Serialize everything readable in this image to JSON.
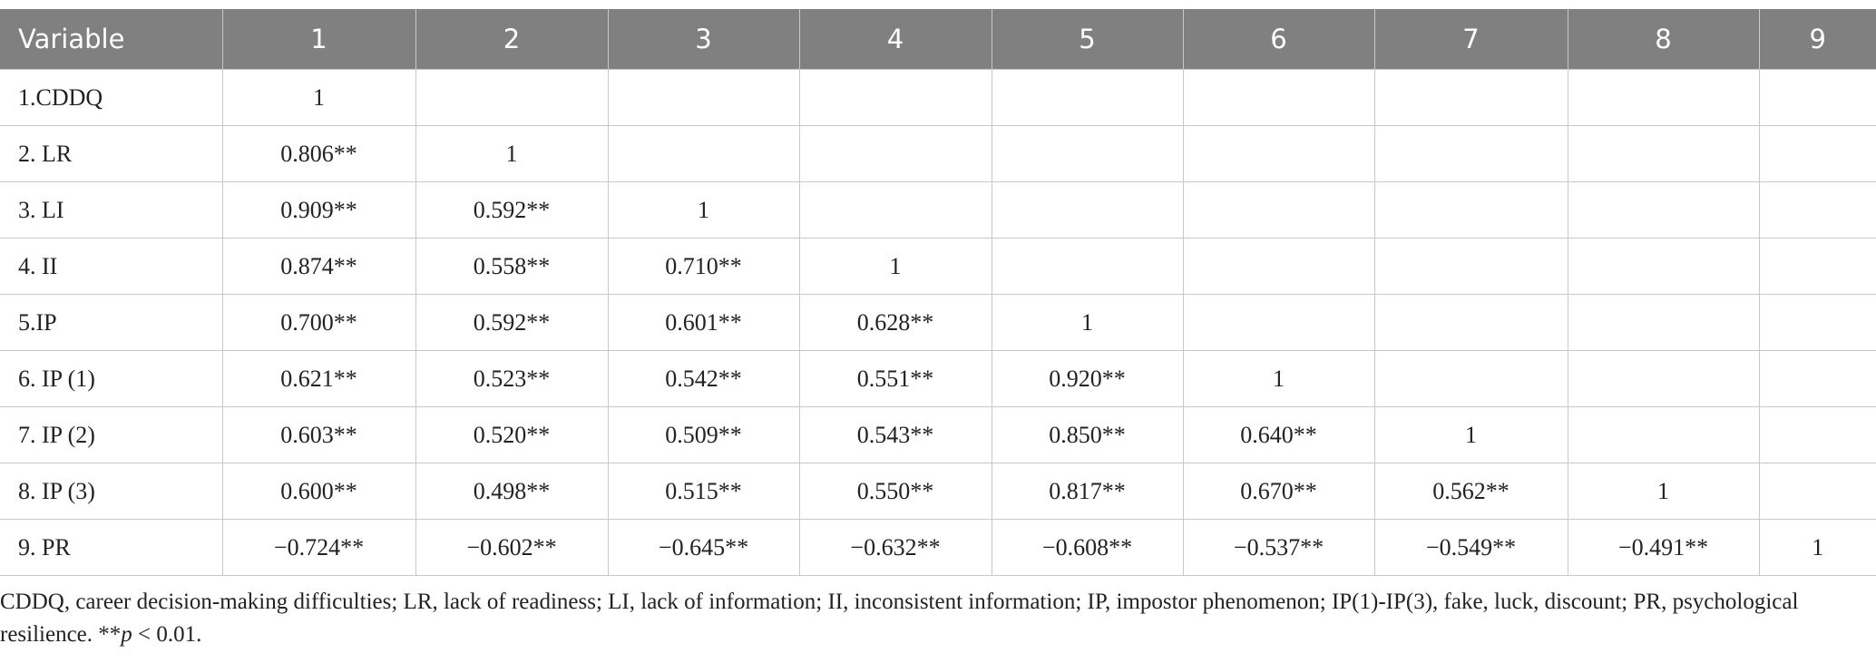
{
  "table": {
    "header": [
      "Variable",
      "1",
      "2",
      "3",
      "4",
      "5",
      "6",
      "7",
      "8",
      "9"
    ],
    "rows": [
      [
        "1.CDDQ",
        "1"
      ],
      [
        "2. LR",
        "0.806**",
        "1"
      ],
      [
        "3. LI",
        "0.909**",
        "0.592**",
        "1"
      ],
      [
        "4. II",
        "0.874**",
        "0.558**",
        "0.710**",
        "1"
      ],
      [
        "5.IP",
        "0.700**",
        "0.592**",
        "0.601**",
        "0.628**",
        "1"
      ],
      [
        "6. IP (1)",
        "0.621**",
        "0.523**",
        "0.542**",
        "0.551**",
        "0.920**",
        "1"
      ],
      [
        "7. IP (2)",
        "0.603**",
        "0.520**",
        "0.509**",
        "0.543**",
        "0.850**",
        "0.640**",
        "1"
      ],
      [
        "8. IP (3)",
        "0.600**",
        "0.498**",
        "0.515**",
        "0.550**",
        "0.817**",
        "0.670**",
        "0.562**",
        "1"
      ],
      [
        "9. PR",
        "−0.724**",
        "−0.602**",
        "−0.645**",
        "−0.632**",
        "−0.608**",
        "−0.537**",
        "−0.549**",
        "−0.491**",
        "1"
      ]
    ]
  },
  "footnote": [
    "CDDQ, career decision-making difficulties; LR, lack of readiness; LI, lack of information; II, inconsistent information; IP, impostor phenomenon; IP(1)-IP(3), fake, luck, discount; PR, psychological resilience. **",
    "p",
    " < 0.01."
  ]
}
